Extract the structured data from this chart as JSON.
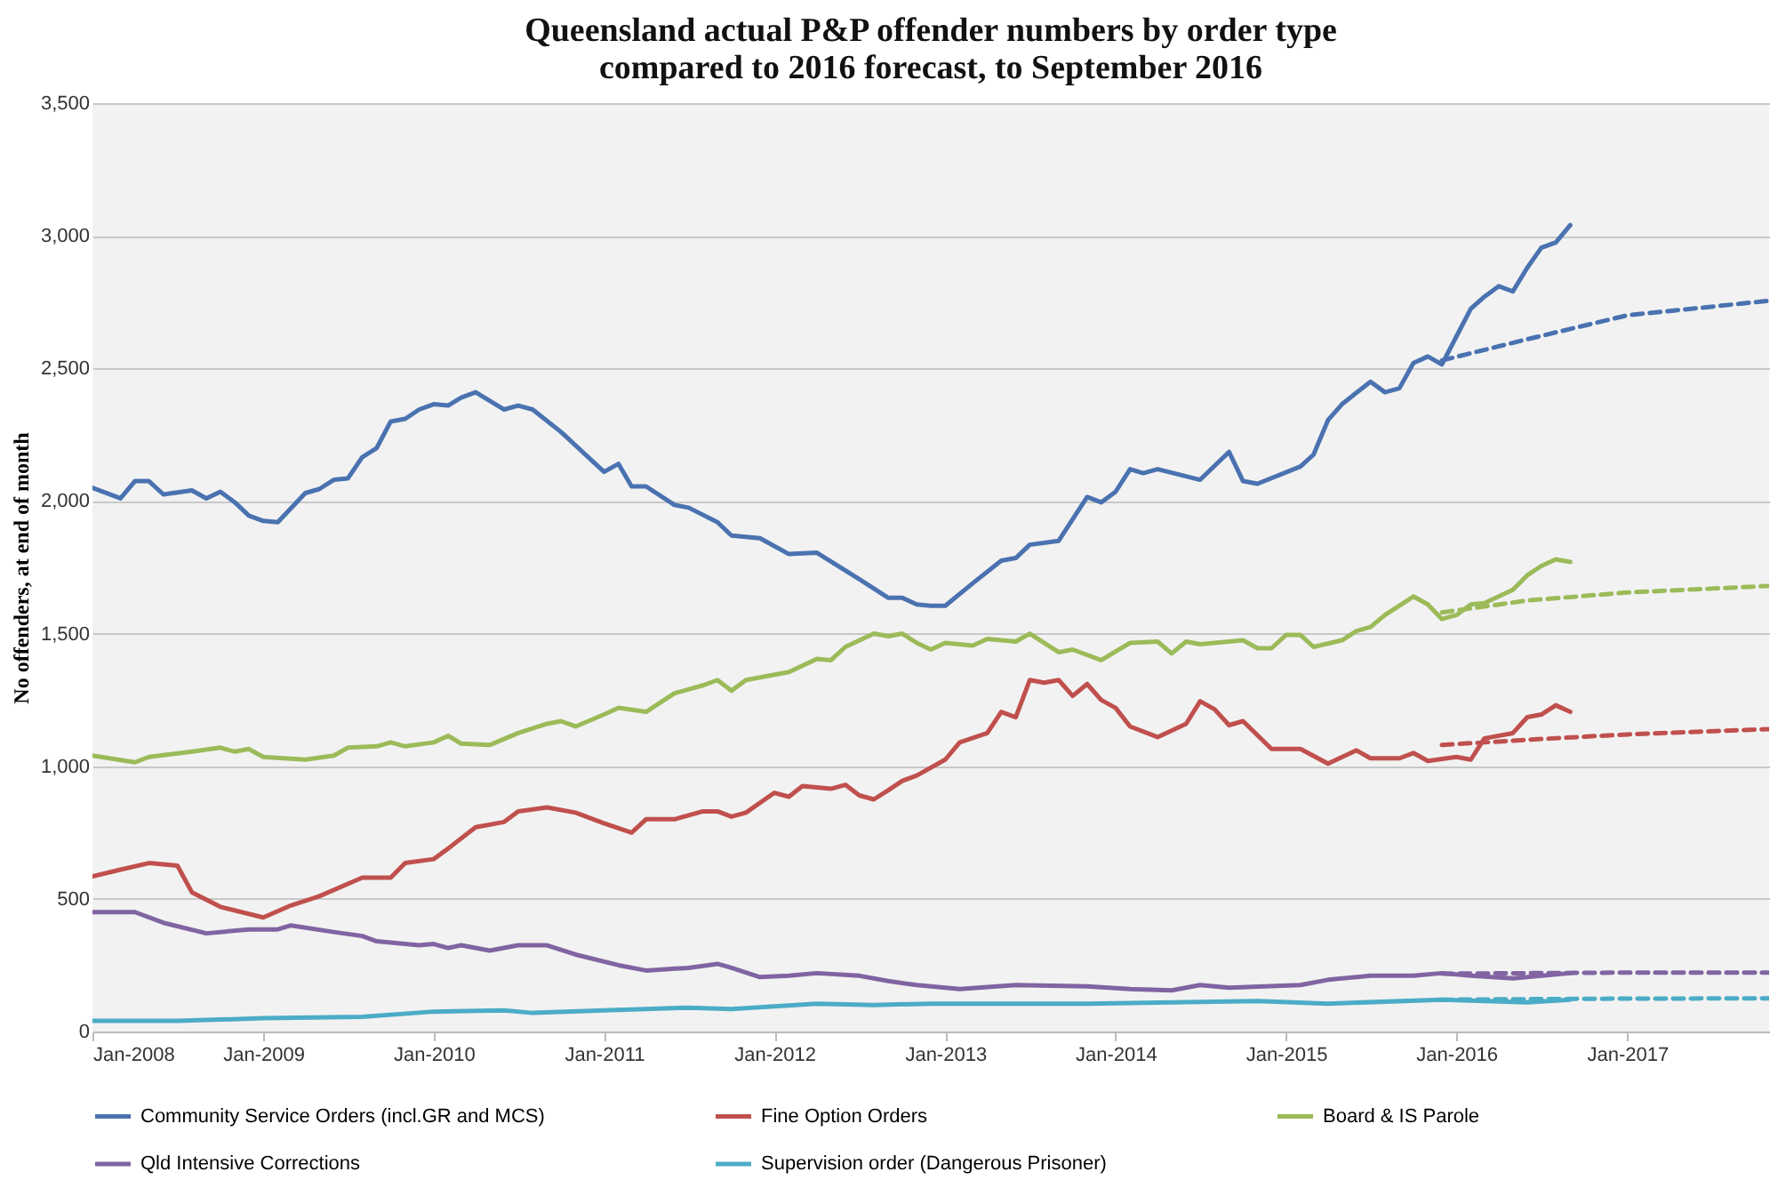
{
  "chart_data": {
    "type": "line",
    "title": [
      "Queensland actual P&P offender numbers by order type",
      "compared to 2016 forecast, to September 2016"
    ],
    "ylabel": "No offenders, at end of month",
    "xlim": [
      "2008-01",
      "2017-11"
    ],
    "xticks": [
      {
        "value": "2008-01",
        "label": "Jan-2008"
      },
      {
        "value": "2009-01",
        "label": "Jan-2009"
      },
      {
        "value": "2010-01",
        "label": "Jan-2010"
      },
      {
        "value": "2011-01",
        "label": "Jan-2011"
      },
      {
        "value": "2012-01",
        "label": "Jan-2012"
      },
      {
        "value": "2013-01",
        "label": "Jan-2013"
      },
      {
        "value": "2014-01",
        "label": "Jan-2014"
      },
      {
        "value": "2015-01",
        "label": "Jan-2015"
      },
      {
        "value": "2016-01",
        "label": "Jan-2016"
      },
      {
        "value": "2017-01",
        "label": "Jan-2017"
      }
    ],
    "ylim": [
      0,
      3500
    ],
    "yticks": [
      0,
      500,
      {
        "value": 1000,
        "label": "1,000"
      },
      {
        "value": 1500,
        "label": "1,500"
      },
      {
        "value": 2000,
        "label": "2,000"
      },
      {
        "value": 2500,
        "label": "2,500"
      },
      {
        "value": 3000,
        "label": "3,000"
      },
      {
        "value": 3500,
        "label": "3,500"
      }
    ],
    "grid": "y",
    "legend": "bottom",
    "line_style": "solid",
    "marker": "none",
    "series": [
      {
        "name": "Community Service Orders (incl.GR and MCS)",
        "color": "#4a72b0",
        "x": [
          "2008-01",
          "2008-03",
          "2008-04",
          "2008-05",
          "2008-06",
          "2008-08",
          "2008-09",
          "2008-10",
          "2008-11",
          "2008-12",
          "2009-01",
          "2009-02",
          "2009-04",
          "2009-05",
          "2009-06",
          "2009-07",
          "2009-08",
          "2009-09",
          "2009-10",
          "2009-11",
          "2009-12",
          "2010-01",
          "2010-02",
          "2010-03",
          "2010-04",
          "2010-06",
          "2010-07",
          "2010-08",
          "2010-10",
          "2011-01",
          "2011-02",
          "2011-03",
          "2011-04",
          "2011-06",
          "2011-07",
          "2011-09",
          "2011-10",
          "2011-12",
          "2012-02",
          "2012-04",
          "2012-07",
          "2012-09",
          "2012-10",
          "2012-11",
          "2012-12",
          "2013-01",
          "2013-03",
          "2013-05",
          "2013-06",
          "2013-07",
          "2013-09",
          "2013-11",
          "2013-12",
          "2014-01",
          "2014-02",
          "2014-03",
          "2014-04",
          "2014-07",
          "2014-09",
          "2014-10",
          "2014-11",
          "2015-02",
          "2015-03",
          "2015-04",
          "2015-05",
          "2015-07",
          "2015-08",
          "2015-09",
          "2015-10",
          "2015-11",
          "2015-12",
          "2016-01",
          "2016-02",
          "2016-03",
          "2016-04",
          "2016-05",
          "2016-06",
          "2016-07",
          "2016-08",
          "2016-09"
        ],
        "values": [
          2050,
          2010,
          2075,
          2075,
          2025,
          2040,
          2010,
          2035,
          1995,
          1945,
          1925,
          1920,
          2030,
          2045,
          2080,
          2085,
          2165,
          2200,
          2300,
          2310,
          2345,
          2365,
          2360,
          2390,
          2410,
          2345,
          2360,
          2345,
          2260,
          2110,
          2140,
          2055,
          2055,
          1985,
          1975,
          1920,
          1870,
          1860,
          1800,
          1805,
          1705,
          1635,
          1635,
          1610,
          1605,
          1605,
          1690,
          1775,
          1785,
          1835,
          1850,
          2015,
          1995,
          2035,
          2120,
          2105,
          2120,
          2080,
          2185,
          2075,
          2065,
          2130,
          2175,
          2305,
          2365,
          2450,
          2410,
          2425,
          2520,
          2545,
          2515,
          2620,
          2725,
          2770,
          2810,
          2790,
          2880,
          2955,
          2975,
          3040
        ]
      },
      {
        "name": "Fine Option Orders",
        "color": "#c0504d",
        "x": [
          "2008-01",
          "2008-03",
          "2008-05",
          "2008-07",
          "2008-08",
          "2008-10",
          "2009-01",
          "2009-03",
          "2009-05",
          "2009-08",
          "2009-10",
          "2009-11",
          "2010-01",
          "2010-02",
          "2010-04",
          "2010-06",
          "2010-07",
          "2010-09",
          "2010-11",
          "2011-01",
          "2011-03",
          "2011-04",
          "2011-06",
          "2011-08",
          "2011-09",
          "2011-10",
          "2011-11",
          "2012-01",
          "2012-02",
          "2012-03",
          "2012-05",
          "2012-06",
          "2012-07",
          "2012-08",
          "2012-09",
          "2012-10",
          "2012-11",
          "2013-01",
          "2013-02",
          "2013-04",
          "2013-05",
          "2013-06",
          "2013-07",
          "2013-08",
          "2013-09",
          "2013-10",
          "2013-11",
          "2013-12",
          "2014-01",
          "2014-02",
          "2014-04",
          "2014-06",
          "2014-07",
          "2014-08",
          "2014-09",
          "2014-10",
          "2014-12",
          "2015-02",
          "2015-04",
          "2015-06",
          "2015-07",
          "2015-09",
          "2015-10",
          "2015-11",
          "2016-01",
          "2016-02",
          "2016-03",
          "2016-05",
          "2016-06",
          "2016-07",
          "2016-08",
          "2016-09"
        ],
        "values": [
          585,
          610,
          635,
          625,
          525,
          470,
          430,
          475,
          510,
          580,
          580,
          635,
          650,
          690,
          770,
          790,
          830,
          845,
          825,
          785,
          750,
          800,
          800,
          830,
          830,
          810,
          825,
          900,
          885,
          925,
          915,
          930,
          890,
          875,
          910,
          945,
          965,
          1025,
          1090,
          1125,
          1205,
          1185,
          1325,
          1315,
          1325,
          1265,
          1310,
          1250,
          1220,
          1150,
          1110,
          1160,
          1245,
          1215,
          1155,
          1170,
          1065,
          1065,
          1010,
          1060,
          1030,
          1030,
          1050,
          1020,
          1035,
          1025,
          1105,
          1125,
          1185,
          1195,
          1230,
          1205
        ]
      },
      {
        "name": "Board & IS Parole",
        "color": "#9bbb59",
        "x": [
          "2008-01",
          "2008-04",
          "2008-05",
          "2008-08",
          "2008-10",
          "2008-11",
          "2008-12",
          "2009-01",
          "2009-04",
          "2009-06",
          "2009-07",
          "2009-09",
          "2009-10",
          "2009-11",
          "2010-01",
          "2010-02",
          "2010-03",
          "2010-05",
          "2010-07",
          "2010-09",
          "2010-10",
          "2010-11",
          "2011-01",
          "2011-02",
          "2011-04",
          "2011-06",
          "2011-08",
          "2011-09",
          "2011-10",
          "2011-11",
          "2012-01",
          "2012-02",
          "2012-04",
          "2012-05",
          "2012-06",
          "2012-08",
          "2012-09",
          "2012-10",
          "2012-11",
          "2012-12",
          "2013-01",
          "2013-03",
          "2013-04",
          "2013-06",
          "2013-07",
          "2013-09",
          "2013-10",
          "2013-12",
          "2014-02",
          "2014-04",
          "2014-05",
          "2014-06",
          "2014-07",
          "2014-10",
          "2014-11",
          "2014-12",
          "2015-01",
          "2015-02",
          "2015-03",
          "2015-05",
          "2015-06",
          "2015-07",
          "2015-08",
          "2015-10",
          "2015-11",
          "2015-12",
          "2016-01",
          "2016-02",
          "2016-03",
          "2016-05",
          "2016-06",
          "2016-07",
          "2016-08",
          "2016-09"
        ],
        "values": [
          1040,
          1015,
          1035,
          1055,
          1070,
          1055,
          1065,
          1035,
          1025,
          1040,
          1070,
          1075,
          1090,
          1075,
          1090,
          1115,
          1085,
          1080,
          1125,
          1160,
          1170,
          1150,
          1195,
          1220,
          1205,
          1275,
          1305,
          1325,
          1285,
          1325,
          1345,
          1355,
          1405,
          1400,
          1450,
          1500,
          1490,
          1500,
          1465,
          1440,
          1465,
          1455,
          1480,
          1470,
          1500,
          1430,
          1440,
          1400,
          1465,
          1470,
          1425,
          1470,
          1460,
          1475,
          1445,
          1445,
          1495,
          1495,
          1450,
          1475,
          1510,
          1525,
          1570,
          1640,
          1610,
          1555,
          1570,
          1610,
          1615,
          1665,
          1720,
          1755,
          1780,
          1770
        ]
      },
      {
        "name": "Qld Intensive Corrections",
        "color": "#8064a2",
        "x": [
          "2008-01",
          "2008-04",
          "2008-06",
          "2008-09",
          "2008-12",
          "2009-02",
          "2009-03",
          "2009-06",
          "2009-08",
          "2009-09",
          "2009-12",
          "2010-01",
          "2010-02",
          "2010-03",
          "2010-05",
          "2010-07",
          "2010-09",
          "2010-11",
          "2011-02",
          "2011-04",
          "2011-07",
          "2011-09",
          "2011-10",
          "2011-12",
          "2012-02",
          "2012-04",
          "2012-07",
          "2012-09",
          "2012-11",
          "2013-02",
          "2013-06",
          "2013-11",
          "2014-02",
          "2014-05",
          "2014-07",
          "2014-09",
          "2015-02",
          "2015-04",
          "2015-07",
          "2015-10",
          "2015-12",
          "2016-02",
          "2016-05",
          "2016-09"
        ],
        "values": [
          450,
          450,
          410,
          370,
          385,
          385,
          400,
          375,
          360,
          340,
          325,
          330,
          315,
          325,
          305,
          325,
          325,
          290,
          250,
          230,
          240,
          255,
          240,
          205,
          210,
          220,
          210,
          190,
          175,
          160,
          175,
          170,
          160,
          155,
          175,
          165,
          175,
          195,
          210,
          210,
          220,
          210,
          200,
          220
        ]
      },
      {
        "name": "Supervision order (Dangerous Prisoner)",
        "color": "#4bacc6",
        "x": [
          "2008-01",
          "2008-07",
          "2009-01",
          "2009-08",
          "2010-01",
          "2010-06",
          "2010-08",
          "2011-01",
          "2011-07",
          "2011-10",
          "2012-04",
          "2012-08",
          "2012-12",
          "2013-11",
          "2014-11",
          "2015-04",
          "2015-12",
          "2016-06",
          "2016-09"
        ],
        "values": [
          40,
          40,
          50,
          55,
          75,
          80,
          70,
          80,
          90,
          85,
          105,
          100,
          105,
          105,
          115,
          105,
          120,
          110,
          120
        ]
      },
      {
        "color": "#4a72b0",
        "line_style": "dashed",
        "x": [
          "2015-12",
          "2016-06",
          "2017-01",
          "2017-11"
        ],
        "values": [
          2530,
          2610,
          2700,
          2755
        ]
      },
      {
        "color": "#c0504d",
        "line_style": "dashed",
        "x": [
          "2015-12",
          "2016-06",
          "2017-01",
          "2017-11"
        ],
        "values": [
          1080,
          1100,
          1120,
          1140
        ]
      },
      {
        "color": "#9bbb59",
        "line_style": "dashed",
        "x": [
          "2015-12",
          "2016-06",
          "2017-01",
          "2017-11"
        ],
        "values": [
          1580,
          1625,
          1655,
          1680
        ]
      },
      {
        "color": "#8064a2",
        "line_style": "dashed",
        "x": [
          "2015-12",
          "2016-06",
          "2017-01",
          "2017-11"
        ],
        "values": [
          218,
          220,
          222,
          222
        ]
      },
      {
        "color": "#4bacc6",
        "line_style": "dashed",
        "x": [
          "2015-12",
          "2016-06",
          "2017-01",
          "2017-11"
        ],
        "values": [
          120,
          122,
          124,
          125
        ]
      }
    ]
  }
}
